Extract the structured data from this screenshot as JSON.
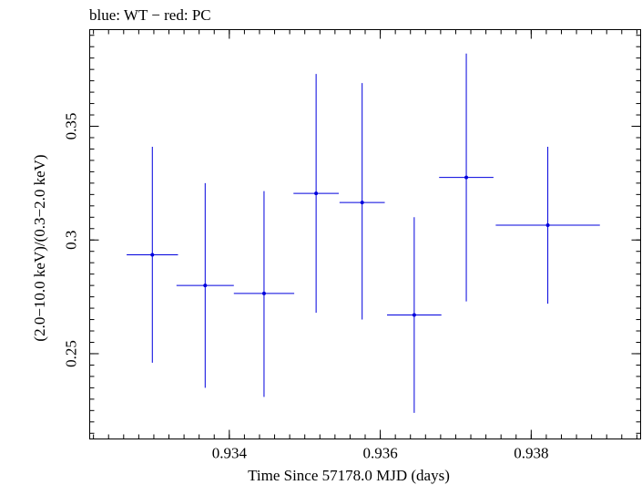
{
  "chart_data": {
    "type": "scatter",
    "title": "blue: WT − red: PC",
    "xlabel": "Time Since 57178.0 MJD (days)",
    "ylabel": "(2.0−10.0 keV)/(0.3−2.0 keV)",
    "xlim": [
      0.93215,
      0.93945
    ],
    "ylim": [
      0.2125,
      0.3925
    ],
    "x_ticks": [
      0.934,
      0.936,
      0.938
    ],
    "x_tick_labels": [
      "0.934",
      "0.936",
      "0.938"
    ],
    "y_ticks": [
      0.25,
      0.3,
      0.35
    ],
    "y_tick_labels": [
      "0.25",
      "0.3",
      "0.35"
    ],
    "x_minor_step": 0.0002,
    "y_minor_step": 0.005,
    "grid": false,
    "series": [
      {
        "name": "WT",
        "color": "#0000dd",
        "points": [
          {
            "x": 0.93298,
            "xerr": 0.00034,
            "y": 0.2935,
            "ylo": 0.246,
            "yhi": 0.341
          },
          {
            "x": 0.93368,
            "xerr": 0.00038,
            "y": 0.28,
            "ylo": 0.235,
            "yhi": 0.325
          },
          {
            "x": 0.93446,
            "xerr": 0.0004,
            "y": 0.2765,
            "ylo": 0.231,
            "yhi": 0.3215
          },
          {
            "x": 0.93515,
            "xerr": 0.0003,
            "y": 0.3205,
            "ylo": 0.268,
            "yhi": 0.373
          },
          {
            "x": 0.93576,
            "xerr": 0.0003,
            "y": 0.3165,
            "ylo": 0.265,
            "yhi": 0.369
          },
          {
            "x": 0.93645,
            "xerr": 0.00036,
            "y": 0.267,
            "ylo": 0.224,
            "yhi": 0.31
          },
          {
            "x": 0.93714,
            "xerr": 0.00036,
            "y": 0.3275,
            "ylo": 0.273,
            "yhi": 0.382
          },
          {
            "x": 0.93822,
            "xerr": 0.00069,
            "y": 0.3065,
            "ylo": 0.272,
            "yhi": 0.341
          }
        ]
      }
    ]
  }
}
